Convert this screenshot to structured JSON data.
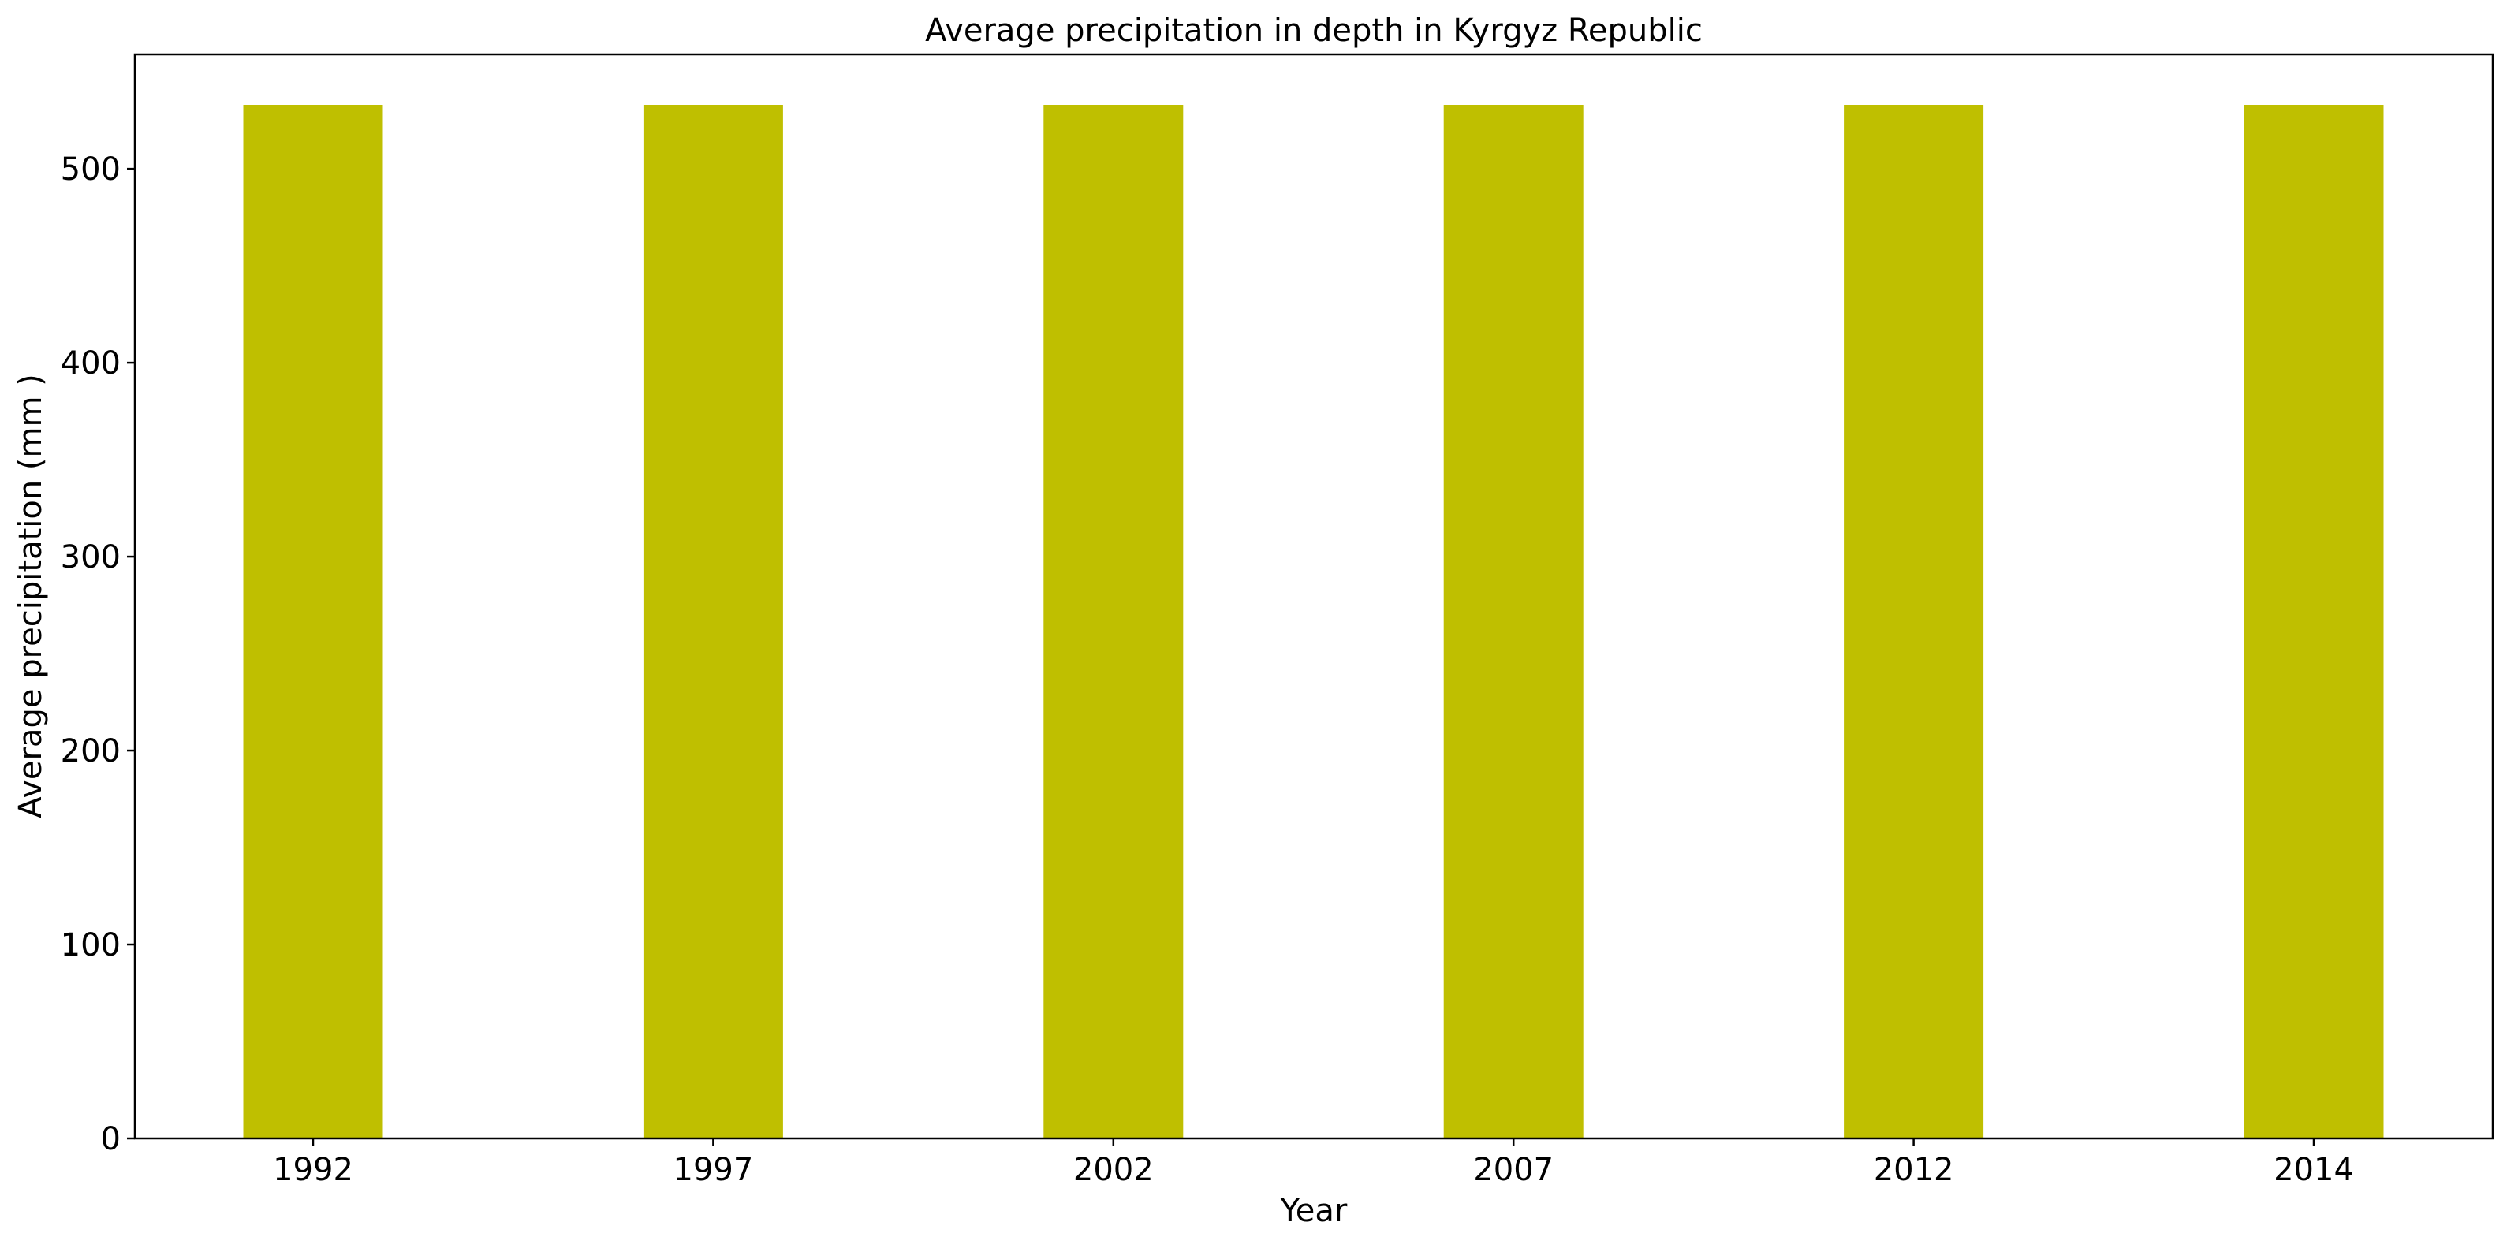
{
  "chart_data": {
    "type": "bar",
    "title": "Average precipitation in depth in Kyrgyz Republic",
    "xlabel": "Year",
    "ylabel": "Average precipitation (mm )",
    "categories": [
      "1992",
      "1997",
      "2002",
      "2007",
      "2012",
      "2014"
    ],
    "values": [
      533,
      533,
      533,
      533,
      533,
      533
    ],
    "ylim": [
      0,
      559
    ],
    "yticks": [
      0,
      100,
      200,
      300,
      400,
      500
    ],
    "bar_color": "#bfbf00",
    "grid": false,
    "legend": "none"
  }
}
